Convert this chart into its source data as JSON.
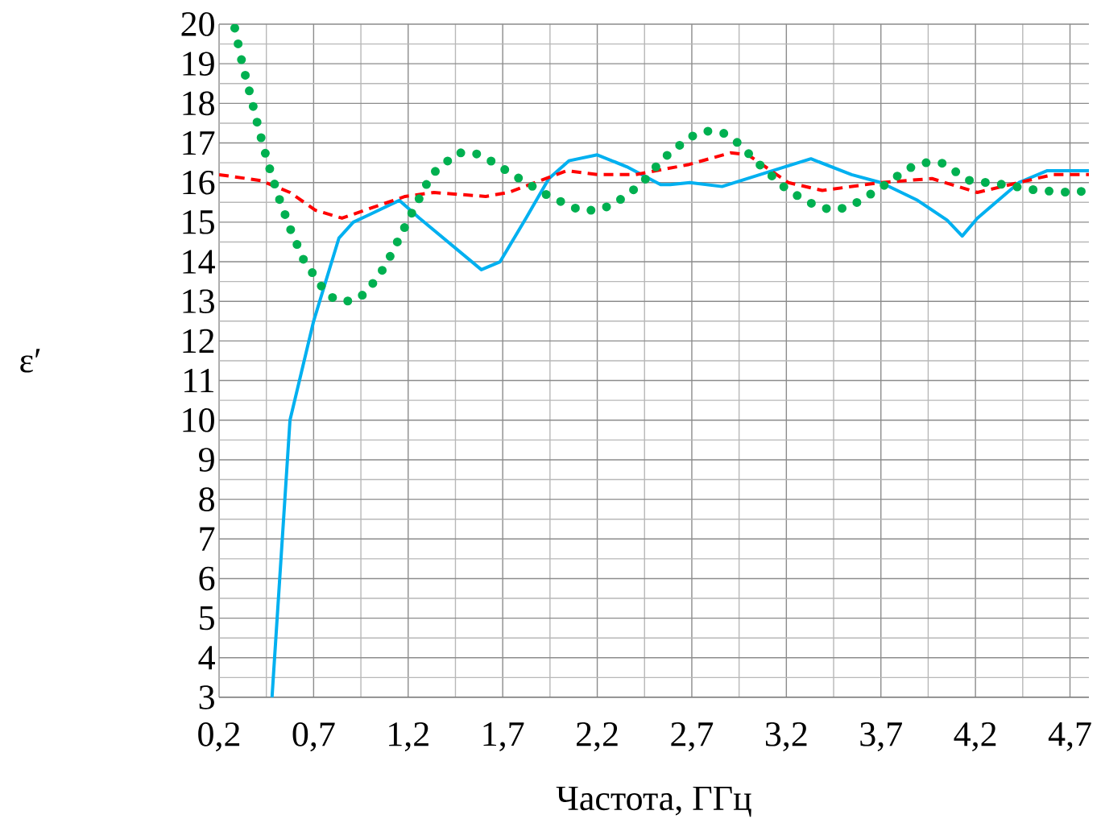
{
  "chart_data": {
    "type": "line",
    "xlabel": "Частота, ГГц",
    "ylabel": "ε′",
    "xlim": [
      0.2,
      4.8
    ],
    "ylim": [
      3,
      20
    ],
    "xticks": [
      {
        "value": 0.2,
        "label": "0,2"
      },
      {
        "value": 0.7,
        "label": "0,7"
      },
      {
        "value": 1.2,
        "label": "1,2"
      },
      {
        "value": 1.7,
        "label": "1,7"
      },
      {
        "value": 2.2,
        "label": "2,2"
      },
      {
        "value": 2.7,
        "label": "2,7"
      },
      {
        "value": 3.2,
        "label": "3,2"
      },
      {
        "value": 3.7,
        "label": "3,7"
      },
      {
        "value": 4.2,
        "label": "4,2"
      },
      {
        "value": 4.7,
        "label": "4,7"
      }
    ],
    "yticks": [
      3,
      4,
      5,
      6,
      7,
      8,
      9,
      10,
      11,
      12,
      13,
      14,
      15,
      16,
      17,
      18,
      19,
      20
    ],
    "grid": true,
    "series": [
      {
        "color": "#00b0f0",
        "line_style": "solid",
        "x": [
          0.48,
          0.575,
          0.7,
          0.834,
          0.91,
          1.0,
          1.153,
          1.26,
          1.587,
          1.686,
          1.823,
          1.944,
          2.05,
          2.2,
          2.356,
          2.535,
          2.586,
          2.69,
          2.86,
          3.06,
          3.33,
          3.545,
          3.7,
          3.894,
          4.05,
          4.13,
          4.21,
          4.43,
          4.58,
          4.8
        ],
        "values": [
          3.0,
          10.0,
          12.5,
          14.6,
          15.0,
          15.2,
          15.55,
          15.1,
          13.8,
          14.0,
          15.1,
          16.1,
          16.55,
          16.7,
          16.4,
          15.95,
          15.95,
          16.0,
          15.9,
          16.2,
          16.6,
          16.2,
          16.0,
          15.55,
          15.05,
          14.65,
          15.1,
          16.0,
          16.3,
          16.3
        ]
      },
      {
        "color": "#ff0000",
        "line_style": "dashed",
        "x": [
          0.2,
          0.42,
          0.575,
          0.71,
          0.85,
          1.0,
          1.184,
          1.336,
          1.61,
          1.73,
          1.9,
          2.04,
          2.2,
          2.4,
          2.68,
          2.905,
          2.997,
          3.21,
          3.39,
          3.7,
          3.97,
          4.21,
          4.43,
          4.61,
          4.8
        ],
        "values": [
          16.2,
          16.05,
          15.75,
          15.3,
          15.1,
          15.35,
          15.65,
          15.75,
          15.65,
          15.75,
          16.05,
          16.3,
          16.2,
          16.2,
          16.45,
          16.75,
          16.7,
          16.0,
          15.8,
          16.0,
          16.1,
          15.75,
          16.0,
          16.2,
          16.2
        ]
      },
      {
        "color": "#00b050",
        "line_style": "dotted",
        "x": [
          0.283,
          0.323,
          0.366,
          0.41,
          0.458,
          0.514,
          0.575,
          0.647,
          0.746,
          0.81,
          0.897,
          0.975,
          1.08,
          1.2,
          1.323,
          1.46,
          1.55,
          1.636,
          1.788,
          1.947,
          2.11,
          2.2,
          2.287,
          2.43,
          2.547,
          2.69,
          2.777,
          2.867,
          2.944,
          3.07,
          3.208,
          3.362,
          3.45,
          3.54,
          3.694,
          3.842,
          3.928,
          4.02,
          4.17,
          4.349,
          4.53,
          4.71,
          4.8
        ],
        "values": [
          19.9,
          19.0,
          18.2,
          17.35,
          16.5,
          15.65,
          14.85,
          14.05,
          13.35,
          13.05,
          13.0,
          13.2,
          13.9,
          15.05,
          16.2,
          16.75,
          16.75,
          16.55,
          16.1,
          15.65,
          15.3,
          15.3,
          15.45,
          15.95,
          16.6,
          17.15,
          17.3,
          17.25,
          17.0,
          16.4,
          15.8,
          15.4,
          15.3,
          15.4,
          15.85,
          16.35,
          16.5,
          16.5,
          16.05,
          15.95,
          15.8,
          15.75,
          15.8
        ]
      }
    ]
  }
}
